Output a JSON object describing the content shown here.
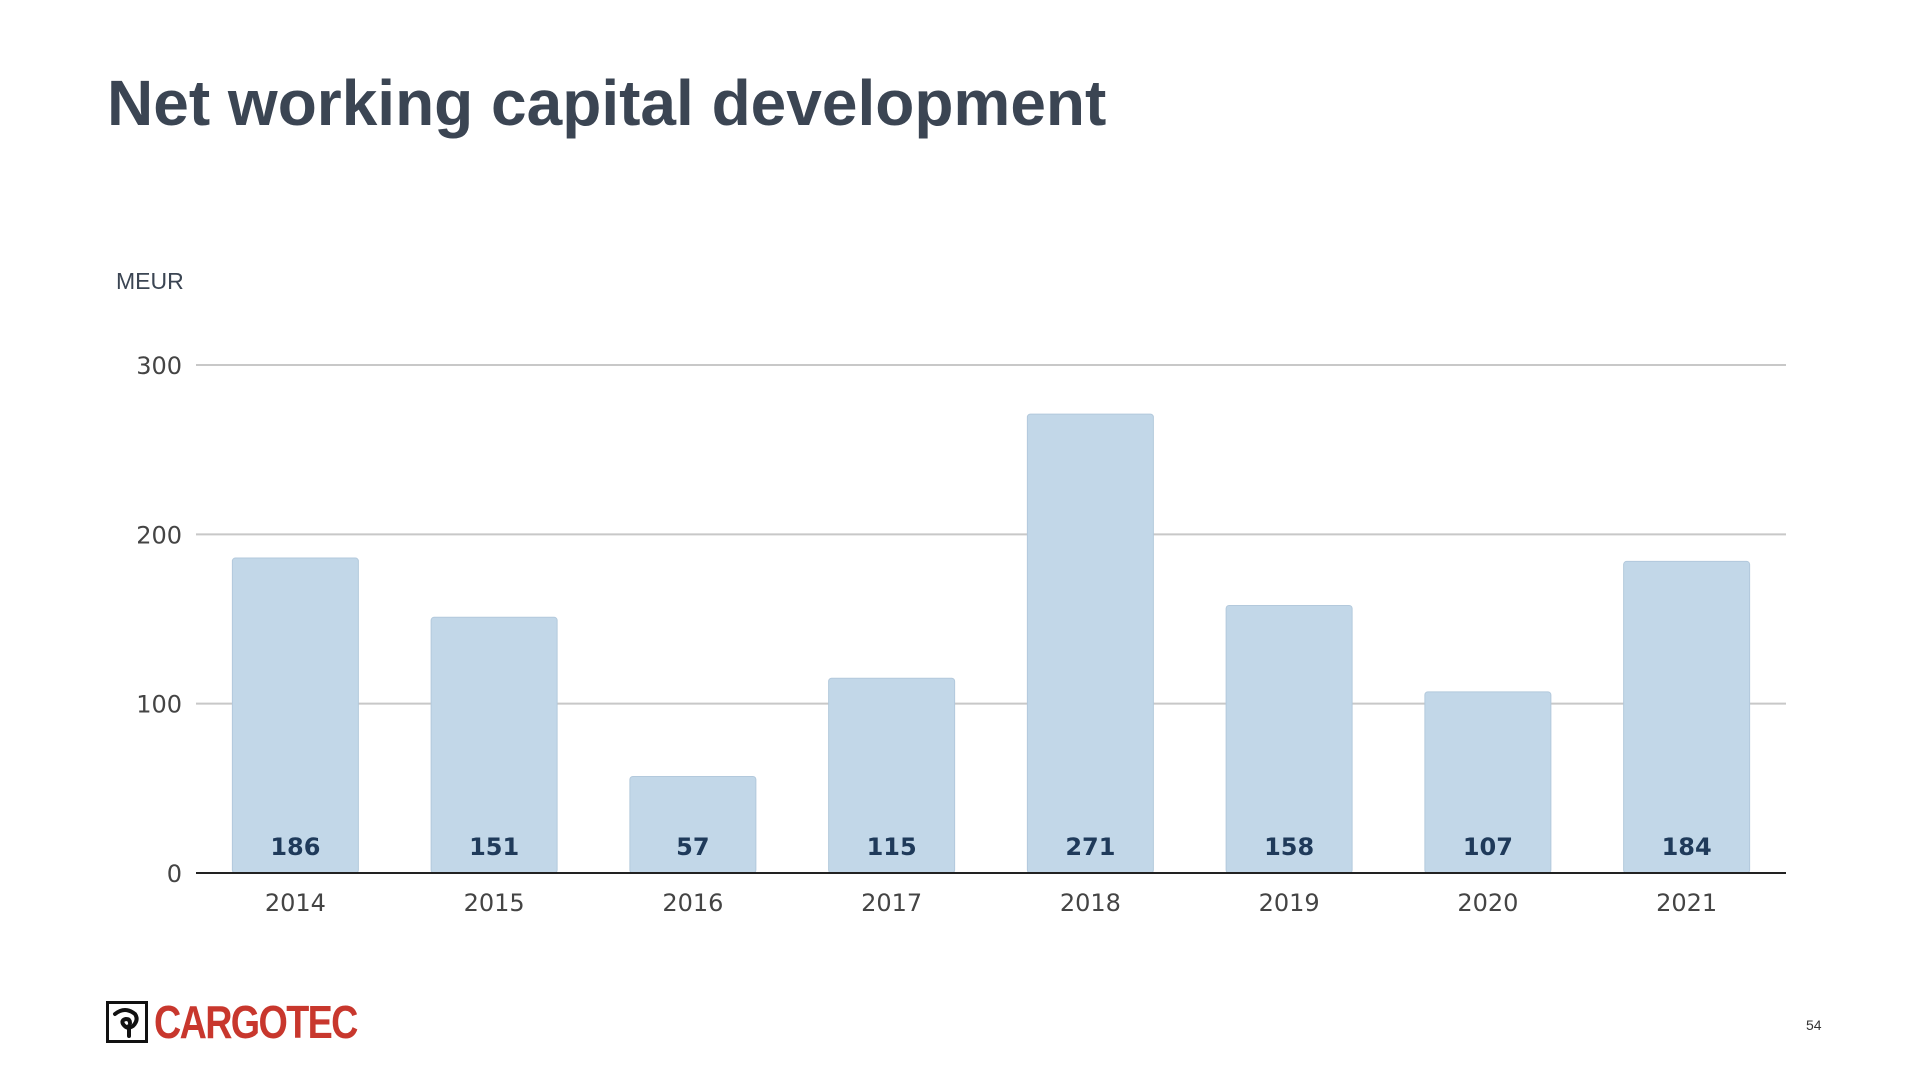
{
  "slide": {
    "title": "Net working capital development",
    "unit_label": "MEUR",
    "page_number": "54",
    "logo_text": "CARGOTEC"
  },
  "colors": {
    "bar": "#c2d7e8",
    "bar_label": "#1f3a5a",
    "title": "#3b4553",
    "gridline": "#c8c8c8",
    "axis": "#222222",
    "logo": "#c8372d"
  },
  "chart_data": {
    "type": "bar",
    "title": "",
    "xlabel": "",
    "ylabel": "MEUR",
    "categories": [
      "2014",
      "2015",
      "2016",
      "2017",
      "2018",
      "2019",
      "2020",
      "2021"
    ],
    "values": [
      186,
      151,
      57,
      115,
      271,
      158,
      107,
      184
    ],
    "data_labels": [
      "186",
      "151",
      "57",
      "115",
      "271",
      "158",
      "107",
      "184"
    ],
    "ylim": [
      0,
      300
    ],
    "yticks": [
      0,
      100,
      200,
      300
    ],
    "ytick_labels": [
      "0",
      "100",
      "200",
      "300"
    ],
    "grid": true,
    "legend": "none"
  }
}
